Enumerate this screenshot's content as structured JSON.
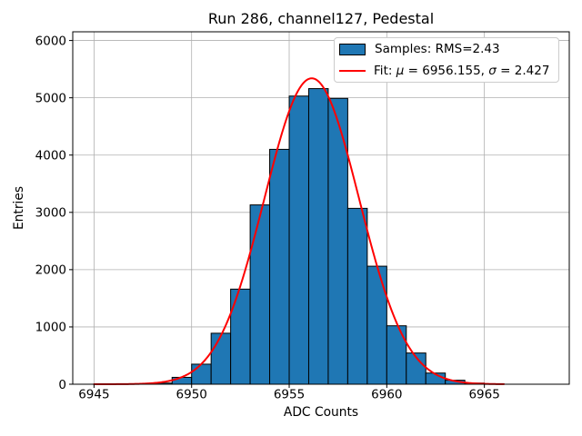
{
  "chart_data": {
    "type": "bar",
    "subtype": "histogram",
    "title": "Run 286, channel127, Pedestal",
    "xlabel": "ADC Counts",
    "ylabel": "Entries",
    "xlim": [
      6943.91,
      6969.35
    ],
    "ylim": [
      0,
      6152
    ],
    "xticks": [
      6945,
      6950,
      6955,
      6960,
      6965
    ],
    "yticks": [
      0,
      1000,
      2000,
      3000,
      4000,
      5000,
      6000
    ],
    "grid": true,
    "grid_color": "#b0b0b0",
    "bar_color": "#1f77b4",
    "bar_edge_color": "#000000",
    "bin_edges": [
      6948,
      6949,
      6950,
      6951,
      6952,
      6953,
      6954,
      6955,
      6956,
      6957,
      6958,
      6959,
      6960,
      6961,
      6962,
      6963,
      6964,
      6965
    ],
    "values": [
      20,
      120,
      350,
      890,
      1660,
      3130,
      4100,
      5030,
      5160,
      4990,
      3070,
      2060,
      1020,
      545,
      195,
      70,
      20
    ],
    "fit_curve": {
      "mu": 6956.155,
      "sigma": 2.427,
      "peak": 5340,
      "x_start": 6945,
      "x_end": 6966,
      "color": "#ff0000"
    },
    "legend": {
      "location": "upper right",
      "entries": [
        {
          "swatch": "patch",
          "color": "#1f77b4",
          "label": "Samples: RMS=2.43"
        },
        {
          "swatch": "line",
          "color": "#ff0000",
          "label": "Fit: μ = 6956.155, σ = 2.427"
        }
      ]
    }
  }
}
